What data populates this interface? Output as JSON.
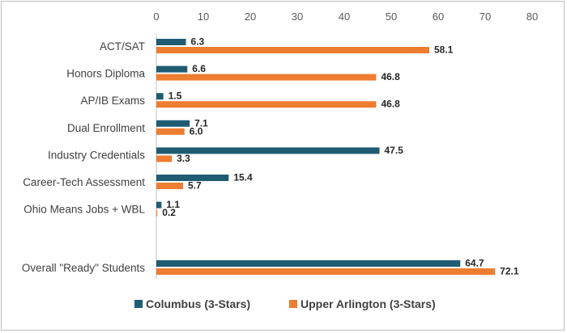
{
  "chart_data": {
    "type": "bar",
    "orientation": "horizontal",
    "x_ticks": [
      "0",
      "10",
      "20",
      "30",
      "40",
      "50",
      "60",
      "70",
      "80"
    ],
    "xlim": [
      0,
      80
    ],
    "x_axis_position": "top",
    "grid": false,
    "categories": [
      "ACT/SAT",
      "Honors Diploma",
      "AP/IB Exams",
      "Dual Enrollment",
      "Industry Credentials",
      "Career-Tech Assessment",
      "Ohio Means Jobs + WBL",
      "",
      "Overall \"Ready\" Students"
    ],
    "series": [
      {
        "name": "Columbus (3-Stars)",
        "color": "#1f5c73",
        "values": [
          6.3,
          6.6,
          1.5,
          7.1,
          47.5,
          15.4,
          1.1,
          null,
          64.7
        ],
        "labels": [
          "6.3",
          "6.6",
          "1.5",
          "7.1",
          "47.5",
          "15.4",
          "1.1",
          null,
          "64.7"
        ]
      },
      {
        "name": "Upper Arlington (3-Stars)",
        "color": "#ed7d31",
        "values": [
          58.1,
          46.8,
          46.8,
          6.0,
          3.3,
          5.7,
          0.2,
          null,
          72.1
        ],
        "labels": [
          "58.1",
          "46.8",
          "46.8",
          "6.0",
          "3.3",
          "5.7",
          "0.2",
          null,
          "72.1"
        ]
      }
    ],
    "legend": "bottom"
  }
}
